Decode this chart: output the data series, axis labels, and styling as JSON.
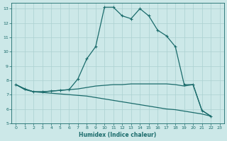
{
  "xlabel": "Humidex (Indice chaleur)",
  "bg_color": "#cce8e8",
  "grid_color": "#aad0d0",
  "line_color": "#1a6b6b",
  "xlim": [
    -0.5,
    23.5
  ],
  "ylim": [
    5,
    13.4
  ],
  "yticks": [
    5,
    6,
    7,
    8,
    9,
    10,
    11,
    12,
    13
  ],
  "xticks": [
    0,
    1,
    2,
    3,
    4,
    5,
    6,
    7,
    8,
    9,
    10,
    11,
    12,
    13,
    14,
    15,
    16,
    17,
    18,
    19,
    20,
    21,
    22,
    23
  ],
  "line_peak": {
    "x": [
      0,
      1,
      2,
      3,
      4,
      5,
      6,
      7,
      8,
      9,
      10,
      11,
      12,
      13,
      14,
      15,
      16,
      17,
      18,
      19,
      20,
      21,
      22
    ],
    "y": [
      7.7,
      7.4,
      7.2,
      7.2,
      7.25,
      7.3,
      7.35,
      8.1,
      9.5,
      10.35,
      13.1,
      13.1,
      12.5,
      12.3,
      13.0,
      12.5,
      11.5,
      11.1,
      10.35,
      7.7,
      7.7,
      5.9,
      5.5
    ]
  },
  "line_flat": {
    "x": [
      0,
      1,
      2,
      3,
      4,
      5,
      6,
      7,
      8,
      9,
      10,
      11,
      12,
      13,
      14,
      15,
      16,
      17,
      18,
      19,
      20,
      21,
      22
    ],
    "y": [
      7.7,
      7.4,
      7.2,
      7.2,
      7.25,
      7.3,
      7.35,
      7.4,
      7.5,
      7.6,
      7.65,
      7.7,
      7.7,
      7.75,
      7.75,
      7.75,
      7.75,
      7.75,
      7.7,
      7.6,
      7.7,
      5.9,
      5.5
    ]
  },
  "line_decline": {
    "x": [
      0,
      1,
      2,
      3,
      4,
      5,
      6,
      7,
      8,
      9,
      10,
      11,
      12,
      13,
      14,
      15,
      16,
      17,
      18,
      19,
      20,
      21,
      22
    ],
    "y": [
      7.7,
      7.35,
      7.2,
      7.15,
      7.1,
      7.05,
      7.0,
      6.95,
      6.9,
      6.8,
      6.7,
      6.6,
      6.5,
      6.4,
      6.3,
      6.2,
      6.1,
      6.0,
      5.95,
      5.85,
      5.75,
      5.65,
      5.5
    ]
  }
}
